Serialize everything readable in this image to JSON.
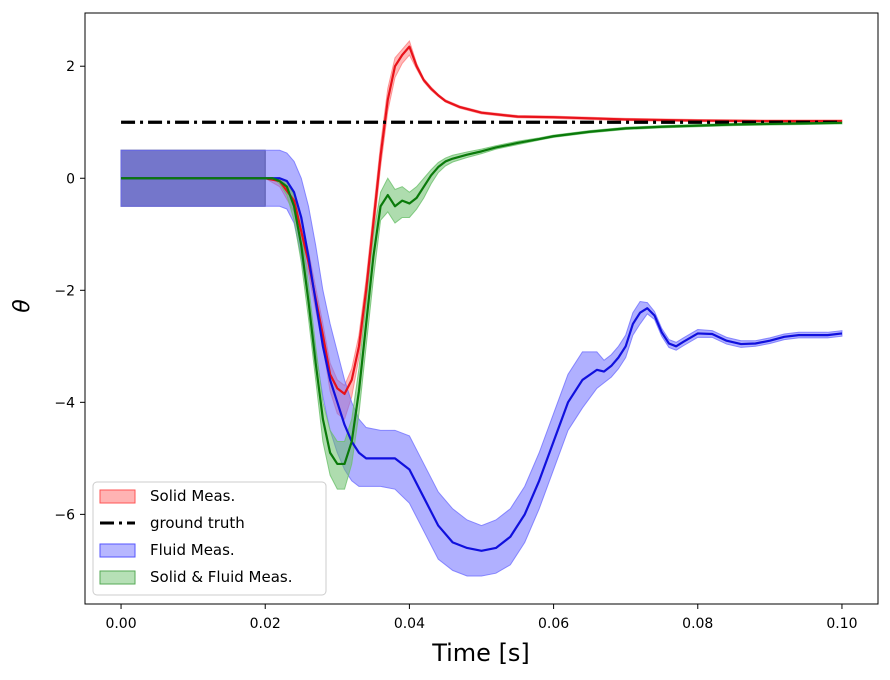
{
  "chart_data": {
    "type": "line",
    "title": "",
    "xlabel": "Time [s]",
    "ylabel": "θ",
    "xlim": [
      -0.005,
      0.105
    ],
    "ylim": [
      -7.6,
      2.95
    ],
    "xticks": [
      0.0,
      0.02,
      0.04,
      0.06,
      0.08,
      0.1
    ],
    "xtick_labels": [
      "0.00",
      "0.02",
      "0.04",
      "0.06",
      "0.08",
      "0.10"
    ],
    "yticks": [
      -6,
      -4,
      -2,
      0,
      2
    ],
    "ytick_labels": [
      "−6",
      "−4",
      "−2",
      "0",
      "2"
    ],
    "grid": false,
    "legend_position": "lower-left",
    "prior_band": {
      "x_range": [
        0.0,
        0.02
      ],
      "lower": -0.5,
      "upper": 0.5,
      "color": "#6b7080"
    },
    "series": [
      {
        "name": "Solid Meas.",
        "color": "#e8121a",
        "fill": "#ff7f7f",
        "style": "solid",
        "x": [
          0.0,
          0.02,
          0.022,
          0.024,
          0.026,
          0.028,
          0.029,
          0.03,
          0.031,
          0.032,
          0.033,
          0.034,
          0.035,
          0.036,
          0.037,
          0.038,
          0.039,
          0.04,
          0.041,
          0.042,
          0.043,
          0.044,
          0.045,
          0.047,
          0.05,
          0.055,
          0.06,
          0.065,
          0.07,
          0.08,
          0.09,
          0.1
        ],
        "y": [
          0.0,
          0.0,
          -0.05,
          -0.4,
          -1.5,
          -2.8,
          -3.5,
          -3.75,
          -3.85,
          -3.6,
          -3.0,
          -2.0,
          -0.8,
          0.4,
          1.4,
          2.0,
          2.2,
          2.35,
          2.0,
          1.75,
          1.6,
          1.48,
          1.38,
          1.27,
          1.17,
          1.1,
          1.09,
          1.07,
          1.05,
          1.03,
          1.02,
          1.02
        ],
        "upper": [
          0.0,
          0.0,
          0.0,
          -0.25,
          -1.3,
          -2.6,
          -3.3,
          -3.6,
          -3.7,
          -3.4,
          -2.8,
          -1.8,
          -0.6,
          0.6,
          1.6,
          2.15,
          2.3,
          2.45,
          2.05,
          1.78,
          1.63,
          1.5,
          1.4,
          1.29,
          1.19,
          1.12,
          1.11,
          1.09,
          1.07,
          1.05,
          1.04,
          1.04
        ],
        "lower": [
          0.0,
          0.0,
          -0.15,
          -0.6,
          -1.7,
          -3.0,
          -3.8,
          -4.2,
          -4.3,
          -3.9,
          -3.2,
          -2.2,
          -1.0,
          0.2,
          1.2,
          1.8,
          2.05,
          2.2,
          1.95,
          1.72,
          1.57,
          1.46,
          1.36,
          1.25,
          1.15,
          1.08,
          1.07,
          1.05,
          1.03,
          1.01,
          1.0,
          1.0
        ]
      },
      {
        "name": "ground truth",
        "color": "#000000",
        "style": "dashdot",
        "x": [
          0.0,
          0.1
        ],
        "y": [
          1.0,
          1.0
        ]
      },
      {
        "name": "Fluid Meas.",
        "color": "#1010dd",
        "fill": "#7070ff",
        "style": "solid",
        "x": [
          0.0,
          0.022,
          0.023,
          0.024,
          0.025,
          0.026,
          0.027,
          0.028,
          0.029,
          0.03,
          0.031,
          0.032,
          0.033,
          0.034,
          0.036,
          0.038,
          0.04,
          0.042,
          0.044,
          0.046,
          0.048,
          0.05,
          0.052,
          0.054,
          0.056,
          0.058,
          0.06,
          0.062,
          0.064,
          0.066,
          0.067,
          0.068,
          0.069,
          0.07,
          0.071,
          0.072,
          0.073,
          0.074,
          0.075,
          0.076,
          0.077,
          0.078,
          0.08,
          0.082,
          0.084,
          0.086,
          0.088,
          0.09,
          0.092,
          0.094,
          0.096,
          0.098,
          0.1
        ],
        "y": [
          0.0,
          0.0,
          -0.05,
          -0.25,
          -0.7,
          -1.4,
          -2.2,
          -3.0,
          -3.6,
          -4.0,
          -4.4,
          -4.7,
          -4.9,
          -5.0,
          -5.0,
          -5.0,
          -5.2,
          -5.7,
          -6.2,
          -6.5,
          -6.6,
          -6.65,
          -6.6,
          -6.4,
          -6.0,
          -5.4,
          -4.7,
          -4.0,
          -3.6,
          -3.42,
          -3.45,
          -3.35,
          -3.2,
          -3.0,
          -2.6,
          -2.4,
          -2.32,
          -2.45,
          -2.75,
          -2.95,
          -3.0,
          -2.92,
          -2.77,
          -2.78,
          -2.9,
          -2.96,
          -2.95,
          -2.9,
          -2.83,
          -2.8,
          -2.8,
          -2.8,
          -2.77
        ],
        "upper": [
          0.5,
          0.5,
          0.45,
          0.3,
          0.0,
          -0.5,
          -1.2,
          -2.0,
          -2.6,
          -3.1,
          -3.6,
          -4.0,
          -4.3,
          -4.45,
          -4.5,
          -4.5,
          -4.6,
          -5.1,
          -5.6,
          -5.9,
          -6.1,
          -6.2,
          -6.1,
          -5.9,
          -5.5,
          -4.9,
          -4.2,
          -3.5,
          -3.1,
          -3.1,
          -3.25,
          -3.15,
          -3.0,
          -2.8,
          -2.4,
          -2.2,
          -2.22,
          -2.38,
          -2.68,
          -2.88,
          -2.93,
          -2.85,
          -2.7,
          -2.72,
          -2.84,
          -2.9,
          -2.9,
          -2.85,
          -2.78,
          -2.75,
          -2.75,
          -2.75,
          -2.72
        ],
        "lower": [
          -0.5,
          -0.5,
          -0.55,
          -0.8,
          -1.4,
          -2.2,
          -3.1,
          -3.9,
          -4.5,
          -4.9,
          -5.2,
          -5.4,
          -5.5,
          -5.5,
          -5.5,
          -5.55,
          -5.8,
          -6.3,
          -6.8,
          -7.0,
          -7.1,
          -7.1,
          -7.05,
          -6.9,
          -6.5,
          -5.9,
          -5.2,
          -4.5,
          -4.1,
          -3.75,
          -3.65,
          -3.55,
          -3.4,
          -3.2,
          -2.8,
          -2.6,
          -2.42,
          -2.52,
          -2.82,
          -3.02,
          -3.07,
          -2.99,
          -2.84,
          -2.84,
          -2.96,
          -3.02,
          -3.0,
          -2.95,
          -2.88,
          -2.85,
          -2.85,
          -2.85,
          -2.82
        ]
      },
      {
        "name": "Solid & Fluid Meas.",
        "color": "#0a7a0a",
        "fill": "#6cc06c",
        "style": "solid",
        "x": [
          0.0,
          0.021,
          0.022,
          0.023,
          0.024,
          0.025,
          0.026,
          0.027,
          0.028,
          0.029,
          0.03,
          0.031,
          0.032,
          0.033,
          0.034,
          0.035,
          0.036,
          0.037,
          0.038,
          0.039,
          0.04,
          0.041,
          0.042,
          0.043,
          0.044,
          0.045,
          0.046,
          0.048,
          0.05,
          0.052,
          0.055,
          0.058,
          0.06,
          0.065,
          0.07,
          0.075,
          0.08,
          0.085,
          0.09,
          0.095,
          0.1
        ],
        "y": [
          0.0,
          0.0,
          -0.05,
          -0.15,
          -0.5,
          -1.2,
          -2.2,
          -3.3,
          -4.3,
          -4.9,
          -5.1,
          -5.1,
          -4.7,
          -3.8,
          -2.6,
          -1.4,
          -0.5,
          -0.3,
          -0.5,
          -0.4,
          -0.45,
          -0.35,
          -0.15,
          0.05,
          0.2,
          0.3,
          0.35,
          0.42,
          0.48,
          0.55,
          0.63,
          0.7,
          0.75,
          0.83,
          0.89,
          0.92,
          0.94,
          0.96,
          0.97,
          0.98,
          0.99
        ],
        "upper": [
          0.0,
          0.0,
          0.0,
          -0.05,
          -0.3,
          -0.9,
          -1.9,
          -3.0,
          -4.0,
          -4.5,
          -4.7,
          -4.7,
          -4.3,
          -3.4,
          -2.2,
          -1.0,
          -0.25,
          0.0,
          -0.2,
          -0.15,
          -0.25,
          -0.15,
          0.0,
          0.15,
          0.28,
          0.36,
          0.41,
          0.47,
          0.52,
          0.58,
          0.66,
          0.72,
          0.77,
          0.85,
          0.91,
          0.94,
          0.96,
          0.98,
          0.99,
          1.0,
          1.01
        ],
        "lower": [
          0.0,
          0.0,
          -0.1,
          -0.3,
          -0.75,
          -1.5,
          -2.5,
          -3.6,
          -4.7,
          -5.3,
          -5.55,
          -5.55,
          -5.1,
          -4.2,
          -3.0,
          -1.8,
          -0.75,
          -0.6,
          -0.8,
          -0.7,
          -0.7,
          -0.55,
          -0.35,
          -0.1,
          0.1,
          0.22,
          0.29,
          0.37,
          0.44,
          0.52,
          0.6,
          0.68,
          0.73,
          0.81,
          0.87,
          0.9,
          0.92,
          0.94,
          0.95,
          0.96,
          0.97
        ]
      }
    ],
    "legend": [
      {
        "label": "Solid Meas.",
        "kind": "patch",
        "color": "#ff9999",
        "edge": "#ff5555"
      },
      {
        "label": "ground truth",
        "kind": "line",
        "color": "#000000",
        "style": "dashdot"
      },
      {
        "label": "Fluid Meas.",
        "kind": "patch",
        "color": "#9f9fff",
        "edge": "#5555ff"
      },
      {
        "label": "Solid & Fluid Meas.",
        "kind": "patch",
        "color": "#9ed69e",
        "edge": "#55aa55"
      }
    ]
  }
}
